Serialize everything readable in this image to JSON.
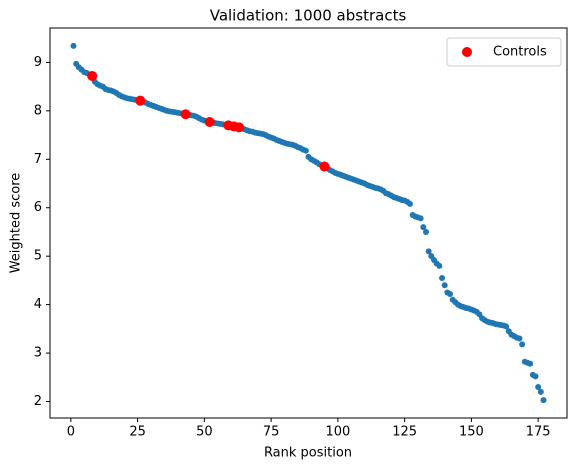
{
  "chart_data": {
    "type": "scatter",
    "title": "Validation: 1000 abstracts",
    "x_label": "Rank position",
    "y_label": "Weighted score",
    "xlim": [
      -7.8,
      185.8
    ],
    "ylim": [
      1.66,
      9.71
    ],
    "xticks": [
      0,
      25,
      50,
      75,
      100,
      125,
      150,
      175
    ],
    "yticks": [
      2,
      3,
      4,
      5,
      6,
      7,
      8,
      9
    ],
    "legend": "upper right",
    "series": [
      {
        "color": "#1f77b4",
        "x": [
          1,
          2,
          3,
          4,
          5,
          6,
          7,
          8,
          9,
          10,
          11,
          12,
          13,
          14,
          15,
          16,
          17,
          18,
          19,
          20,
          21,
          22,
          23,
          24,
          25,
          26,
          27,
          28,
          29,
          30,
          31,
          32,
          33,
          34,
          35,
          36,
          37,
          38,
          39,
          40,
          41,
          42,
          43,
          44,
          45,
          46,
          47,
          48,
          49,
          50,
          51,
          52,
          53,
          54,
          55,
          56,
          57,
          58,
          59,
          60,
          61,
          62,
          63,
          64,
          65,
          66,
          67,
          68,
          69,
          70,
          71,
          72,
          73,
          74,
          75,
          76,
          77,
          78,
          79,
          80,
          81,
          82,
          83,
          84,
          85,
          86,
          87,
          88,
          89,
          90,
          91,
          92,
          93,
          94,
          95,
          96,
          97,
          98,
          99,
          100,
          101,
          102,
          103,
          104,
          105,
          106,
          107,
          108,
          109,
          110,
          111,
          112,
          113,
          114,
          115,
          116,
          117,
          118,
          119,
          120,
          121,
          122,
          123,
          124,
          125,
          126,
          127,
          128,
          129,
          130,
          131,
          132,
          133,
          134,
          135,
          136,
          137,
          138,
          139,
          140,
          141,
          142,
          143,
          144,
          145,
          146,
          147,
          148,
          149,
          150,
          151,
          152,
          153,
          154,
          155,
          156,
          157,
          158,
          159,
          160,
          161,
          162,
          163,
          164,
          165,
          166,
          167,
          168,
          169,
          170,
          171,
          172,
          173,
          174,
          175,
          176,
          177
        ],
        "values": [
          9.34,
          8.97,
          8.9,
          8.85,
          8.8,
          8.78,
          8.75,
          8.72,
          8.6,
          8.55,
          8.52,
          8.5,
          8.45,
          8.43,
          8.42,
          8.4,
          8.37,
          8.33,
          8.3,
          8.28,
          8.26,
          8.25,
          8.24,
          8.23,
          8.22,
          8.21,
          8.2,
          8.17,
          8.14,
          8.12,
          8.1,
          8.08,
          8.06,
          8.04,
          8.02,
          8.0,
          7.99,
          7.98,
          7.97,
          7.96,
          7.95,
          7.94,
          7.93,
          7.92,
          7.91,
          7.9,
          7.88,
          7.85,
          7.82,
          7.8,
          7.78,
          7.77,
          7.76,
          7.75,
          7.74,
          7.73,
          7.72,
          7.71,
          7.7,
          7.69,
          7.68,
          7.67,
          7.66,
          7.64,
          7.62,
          7.6,
          7.58,
          7.57,
          7.55,
          7.54,
          7.53,
          7.52,
          7.5,
          7.47,
          7.45,
          7.43,
          7.4,
          7.38,
          7.36,
          7.34,
          7.32,
          7.31,
          7.3,
          7.28,
          7.25,
          7.23,
          7.2,
          7.18,
          7.05,
          7.0,
          6.97,
          6.94,
          6.9,
          6.87,
          6.85,
          6.82,
          6.78,
          6.75,
          6.72,
          6.7,
          6.68,
          6.66,
          6.64,
          6.62,
          6.6,
          6.58,
          6.56,
          6.54,
          6.52,
          6.5,
          6.47,
          6.45,
          6.43,
          6.41,
          6.4,
          6.38,
          6.35,
          6.3,
          6.28,
          6.25,
          6.22,
          6.2,
          6.18,
          6.16,
          6.15,
          6.12,
          6.08,
          5.85,
          5.82,
          5.8,
          5.78,
          5.6,
          5.5,
          5.1,
          5.0,
          4.92,
          4.85,
          4.8,
          4.55,
          4.4,
          4.25,
          4.22,
          4.1,
          4.05,
          4.0,
          3.97,
          3.95,
          3.93,
          3.92,
          3.9,
          3.88,
          3.85,
          3.8,
          3.72,
          3.68,
          3.65,
          3.63,
          3.62,
          3.6,
          3.59,
          3.58,
          3.57,
          3.55,
          3.45,
          3.38,
          3.35,
          3.32,
          3.3,
          3.18,
          2.82,
          2.8,
          2.78,
          2.55,
          2.52,
          2.3,
          2.2,
          2.03
        ]
      },
      {
        "name": "Controls",
        "color": "#ff0000",
        "x": [
          8,
          26,
          43,
          52,
          59,
          61,
          63,
          95
        ],
        "values": [
          8.72,
          8.21,
          7.93,
          7.77,
          7.7,
          7.68,
          7.66,
          6.85
        ]
      }
    ]
  }
}
